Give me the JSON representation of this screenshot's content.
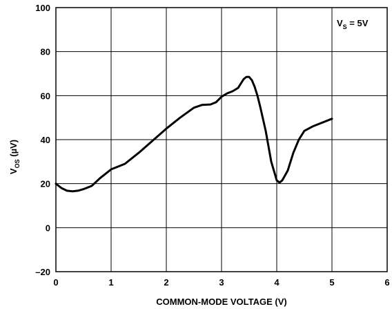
{
  "chart_data": {
    "type": "line",
    "title": "",
    "xlabel": "COMMON-MODE VOLTAGE (V)",
    "ylabel": {
      "main": "V",
      "sub": "OS",
      "unit": " (µV)"
    },
    "annotation": {
      "main": "V",
      "sub": "S",
      "rest": " = 5V"
    },
    "xlim": [
      0,
      6
    ],
    "ylim": [
      -20,
      100
    ],
    "xticks": [
      "0",
      "1",
      "2",
      "3",
      "4",
      "5",
      "6"
    ],
    "yticks": [
      "100",
      "80",
      "60",
      "40",
      "20",
      "0",
      "–20"
    ],
    "xtick_values": [
      0,
      1,
      2,
      3,
      4,
      5,
      6
    ],
    "ytick_values": [
      100,
      80,
      60,
      40,
      20,
      0,
      -20
    ],
    "grid": true,
    "series": [
      {
        "x": [
          0,
          0.1,
          0.2,
          0.3,
          0.4,
          0.5,
          0.65,
          0.8,
          1.0,
          1.25,
          1.5,
          1.75,
          2.0,
          2.25,
          2.5,
          2.65,
          2.8,
          2.9,
          3.0,
          3.1,
          3.2,
          3.3,
          3.4,
          3.45,
          3.5,
          3.55,
          3.6,
          3.65,
          3.7,
          3.8,
          3.9,
          4.0,
          4.05,
          4.1,
          4.2,
          4.3,
          4.4,
          4.5,
          4.65,
          4.8,
          5.0
        ],
        "y": [
          20,
          18,
          16.8,
          16.5,
          16.8,
          17.5,
          19,
          22.5,
          26.5,
          29,
          34,
          39.5,
          45,
          50,
          54.5,
          55.8,
          56,
          57,
          59.5,
          61,
          62,
          63.5,
          67.5,
          68.5,
          68.5,
          67,
          64,
          60,
          55,
          44,
          30,
          21.5,
          20.5,
          21.5,
          26,
          34,
          40,
          44,
          46,
          47.5,
          49.5
        ]
      }
    ]
  }
}
